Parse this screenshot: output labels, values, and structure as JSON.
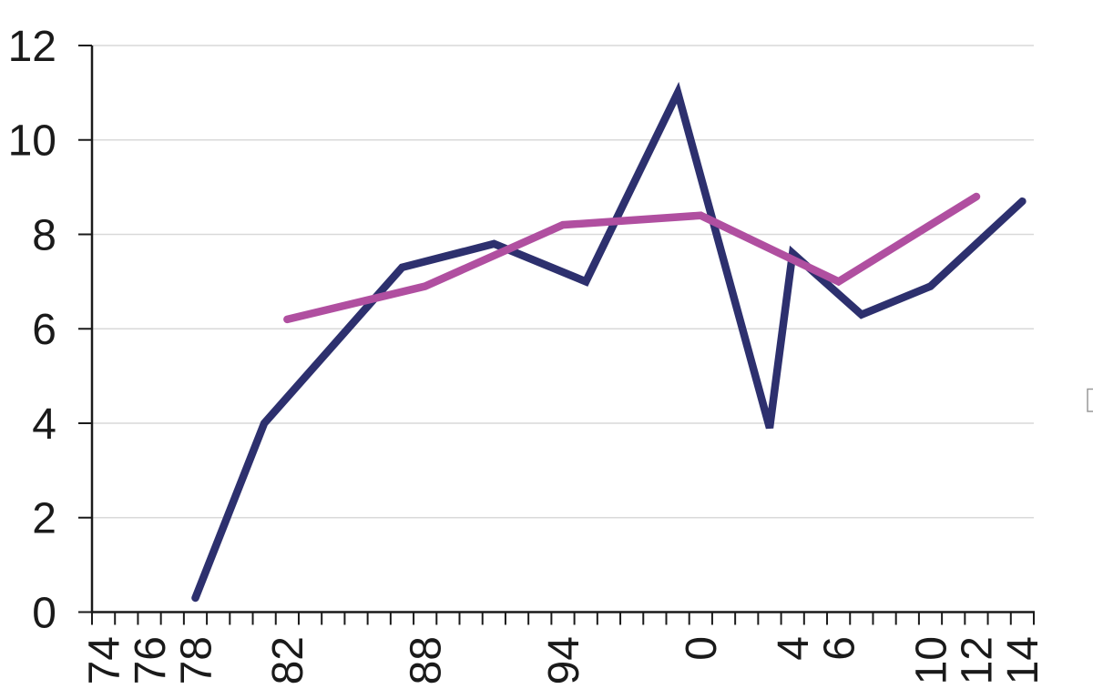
{
  "chart_data": {
    "type": "line",
    "title": "",
    "x_axis": {
      "start_year": 1974,
      "end_year": 2014,
      "tick_interval_years": 1,
      "labels": [
        {
          "year": 1974,
          "text": "74"
        },
        {
          "year": 1976,
          "text": "76"
        },
        {
          "year": 1978,
          "text": "78"
        },
        {
          "year": 1982,
          "text": "82"
        },
        {
          "year": 1988,
          "text": "88"
        },
        {
          "year": 1994,
          "text": "94"
        },
        {
          "year": 2000,
          "text": "0"
        },
        {
          "year": 2004,
          "text": "4"
        },
        {
          "year": 2006,
          "text": "6"
        },
        {
          "year": 2010,
          "text": "10"
        },
        {
          "year": 2012,
          "text": "12"
        },
        {
          "year": 2014,
          "text": "14"
        }
      ],
      "label_rotation_degrees": -90
    },
    "y_axis": {
      "min": 0,
      "max": 12,
      "tick_interval": 2,
      "tick_labels": [
        "0",
        "2",
        "4",
        "6",
        "8",
        "10",
        "12"
      ]
    },
    "grid": "horizontal gridlines at every y tick",
    "legend": "none visible (tiny clipped marker at right edge)",
    "series": [
      {
        "name": "navy-line",
        "color": "#2d306e",
        "points": [
          [
            1978,
            0.3
          ],
          [
            1981,
            4.0
          ],
          [
            1987,
            7.3
          ],
          [
            1991,
            7.8
          ],
          [
            1995,
            7.0
          ],
          [
            1999,
            11.0
          ],
          [
            2003,
            3.9
          ],
          [
            2004,
            7.6
          ],
          [
            2007,
            6.3
          ],
          [
            2010,
            6.9
          ],
          [
            2014,
            8.7
          ]
        ]
      },
      {
        "name": "magenta-line",
        "color": "#b04fa0",
        "points": [
          [
            1982,
            6.2
          ],
          [
            1988,
            6.9
          ],
          [
            1994,
            8.2
          ],
          [
            2000,
            8.4
          ],
          [
            2006,
            7.0
          ],
          [
            2012,
            8.8
          ]
        ]
      }
    ]
  },
  "colors": {
    "background": "#ffffff",
    "gridline": "#d9d9d9",
    "axis": "#1a1a1a",
    "tick": "#1a1a1a",
    "label_text": "#1a1a1a",
    "legend_fragment_border": "#999999"
  }
}
